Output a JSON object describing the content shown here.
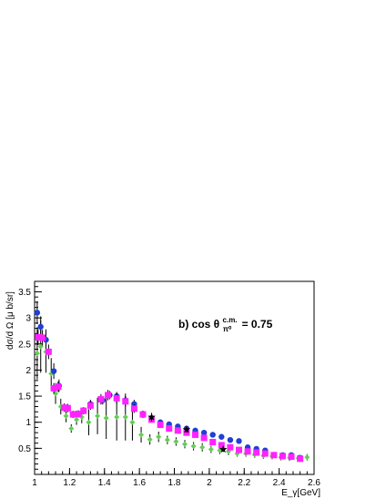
{
  "chart_data": {
    "type": "scatter",
    "title": "",
    "xlabel": "E_γ[GeV]",
    "ylabel": "dσ/d Ω [μ b/sr]",
    "annotation": {
      "prefix": "b) cos θ",
      "superscript": "c.m.",
      "subscript": "π⁰",
      "suffix": " = 0.75"
    },
    "xlim": [
      1.0,
      2.6
    ],
    "ylim": [
      0.0,
      3.7
    ],
    "xticks": [
      1,
      1.2,
      1.4,
      1.6,
      1.8,
      2,
      2.2,
      2.4,
      2.6
    ],
    "xtick_labels": [
      "1",
      "1.2",
      "1.4",
      "1.6",
      "1.8",
      "2",
      "2.2",
      "2.4",
      "2.6"
    ],
    "yticks": [
      0,
      0.5,
      1,
      1.5,
      2,
      2.5,
      3,
      3.5
    ],
    "ytick_labels": [
      "",
      "0.5",
      "1",
      "1.5",
      "2",
      "2.5",
      "3",
      "3.5"
    ],
    "grid": false,
    "series": [
      {
        "color": "#1f3fd6",
        "marker": "circle",
        "points": [
          [
            1.015,
            3.1,
            0.22
          ],
          [
            1.035,
            2.83,
            0.2
          ],
          [
            1.065,
            2.58,
            0.2
          ],
          [
            1.11,
            1.98,
            0.15
          ],
          [
            1.14,
            1.7,
            0.12
          ],
          [
            1.32,
            1.35,
            0.08
          ],
          [
            1.39,
            1.42,
            0.08
          ],
          [
            1.43,
            1.52,
            0.08
          ],
          [
            1.47,
            1.5,
            0.08
          ],
          [
            1.52,
            1.42,
            0.08
          ],
          [
            1.57,
            1.35,
            0.08
          ],
          [
            1.62,
            1.16,
            0.06
          ],
          [
            1.67,
            1.05,
            0.05
          ],
          [
            1.72,
            1.0,
            0.05
          ],
          [
            1.77,
            0.96,
            0.05
          ],
          [
            1.82,
            0.92,
            0.05
          ],
          [
            1.87,
            0.88,
            0.04
          ],
          [
            1.92,
            0.84,
            0.04
          ],
          [
            1.97,
            0.8,
            0.04
          ],
          [
            2.02,
            0.76,
            0.04
          ],
          [
            2.07,
            0.72,
            0.04
          ],
          [
            2.12,
            0.66,
            0.04
          ],
          [
            2.17,
            0.64,
            0.04
          ],
          [
            2.22,
            0.52,
            0.04
          ],
          [
            2.27,
            0.49,
            0.04
          ],
          [
            2.32,
            0.46,
            0.04
          ],
          [
            2.42,
            0.37,
            0.04
          ],
          [
            2.47,
            0.37,
            0.04
          ],
          [
            2.52,
            0.32,
            0.04
          ]
        ]
      },
      {
        "color": "#ff22ff",
        "marker": "square",
        "points": [
          [
            1.02,
            2.63,
            0.15
          ],
          [
            1.045,
            2.62,
            0.15
          ],
          [
            1.08,
            2.35,
            0.14
          ],
          [
            1.11,
            1.65,
            0.1
          ],
          [
            1.135,
            1.68,
            0.1
          ],
          [
            1.17,
            1.28,
            0.08
          ],
          [
            1.19,
            1.27,
            0.08
          ],
          [
            1.22,
            1.15,
            0.07
          ],
          [
            1.25,
            1.16,
            0.07
          ],
          [
            1.28,
            1.22,
            0.07
          ],
          [
            1.32,
            1.32,
            0.08
          ],
          [
            1.38,
            1.44,
            0.1
          ],
          [
            1.42,
            1.52,
            0.1
          ],
          [
            1.47,
            1.46,
            0.1
          ],
          [
            1.52,
            1.4,
            0.1
          ],
          [
            1.57,
            1.26,
            0.08
          ],
          [
            1.62,
            1.15,
            0.07
          ],
          [
            1.67,
            1.05,
            0.06
          ],
          [
            1.72,
            0.95,
            0.06
          ],
          [
            1.77,
            0.88,
            0.05
          ],
          [
            1.82,
            0.84,
            0.05
          ],
          [
            1.87,
            0.8,
            0.05
          ],
          [
            1.92,
            0.76,
            0.05
          ],
          [
            1.97,
            0.7,
            0.04
          ],
          [
            2.02,
            0.62,
            0.04
          ],
          [
            2.07,
            0.56,
            0.04
          ],
          [
            2.12,
            0.52,
            0.04
          ],
          [
            2.17,
            0.47,
            0.04
          ],
          [
            2.22,
            0.44,
            0.04
          ],
          [
            2.27,
            0.42,
            0.04
          ],
          [
            2.32,
            0.4,
            0.04
          ],
          [
            2.37,
            0.37,
            0.04
          ],
          [
            2.42,
            0.35,
            0.04
          ],
          [
            2.47,
            0.34,
            0.04
          ],
          [
            2.52,
            0.3,
            0.04
          ]
        ]
      },
      {
        "color": "#66cc55",
        "marker": "diamond",
        "points": [
          [
            1.015,
            2.32,
            0.5
          ],
          [
            1.035,
            2.45,
            0.5
          ],
          [
            1.065,
            2.35,
            0.4
          ],
          [
            1.095,
            1.93,
            0.3
          ],
          [
            1.12,
            1.55,
            0.2
          ],
          [
            1.15,
            1.3,
            0.15
          ],
          [
            1.18,
            1.12,
            0.12
          ],
          [
            1.21,
            0.88,
            0.08
          ],
          [
            1.24,
            1.05,
            0.1
          ],
          [
            1.27,
            1.1,
            0.12
          ],
          [
            1.31,
            1.0,
            0.25
          ],
          [
            1.36,
            1.12,
            0.35
          ],
          [
            1.41,
            1.08,
            0.4
          ],
          [
            1.47,
            1.1,
            0.45
          ],
          [
            1.52,
            1.1,
            0.45
          ],
          [
            1.56,
            1.0,
            0.35
          ],
          [
            1.61,
            0.76,
            0.15
          ],
          [
            1.66,
            0.67,
            0.1
          ],
          [
            1.71,
            0.72,
            0.1
          ],
          [
            1.76,
            0.66,
            0.08
          ],
          [
            1.81,
            0.63,
            0.08
          ],
          [
            1.86,
            0.58,
            0.08
          ],
          [
            1.91,
            0.54,
            0.08
          ],
          [
            1.96,
            0.52,
            0.08
          ],
          [
            2.01,
            0.48,
            0.07
          ],
          [
            2.06,
            0.46,
            0.07
          ],
          [
            2.11,
            0.44,
            0.07
          ],
          [
            2.16,
            0.4,
            0.06
          ],
          [
            2.21,
            0.4,
            0.06
          ],
          [
            2.26,
            0.38,
            0.06
          ],
          [
            2.31,
            0.36,
            0.06
          ],
          [
            2.36,
            0.35,
            0.06
          ],
          [
            2.41,
            0.33,
            0.06
          ],
          [
            2.46,
            0.32,
            0.06
          ],
          [
            2.51,
            0.31,
            0.06
          ],
          [
            2.56,
            0.33,
            0.06
          ]
        ]
      },
      {
        "color": "#000000",
        "marker": "star",
        "points": [
          [
            1.67,
            1.1,
            0.08
          ],
          [
            1.87,
            0.86,
            0.06
          ],
          [
            2.08,
            0.48,
            0.05
          ]
        ]
      }
    ]
  }
}
